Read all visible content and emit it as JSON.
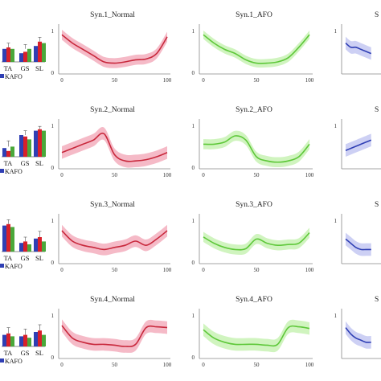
{
  "colors": {
    "normal": "#c8283c",
    "normal_band": "#f3aebd",
    "afo": "#5ec83a",
    "afo_band": "#c8f2b4",
    "kafo": "#2f3fb4",
    "kafo_band": "#c4c8f2",
    "bar_blue": "#2f3fb4",
    "bar_red": "#d8202a",
    "bar_green": "#4aa83a"
  },
  "chart_data": [
    {
      "type": "line",
      "title": "Syn.1_Normal",
      "condition": "Normal",
      "row": 0,
      "col": 0,
      "x": [
        0,
        10,
        20,
        30,
        40,
        50,
        60,
        70,
        80,
        90,
        100
      ],
      "y": [
        0.9,
        0.7,
        0.55,
        0.4,
        0.25,
        0.22,
        0.25,
        0.3,
        0.32,
        0.45,
        0.85
      ],
      "band": 0.12,
      "ylim": [
        0,
        1
      ],
      "yticks": [
        "0",
        "1"
      ],
      "xticks": [
        "0",
        "50",
        "100"
      ]
    },
    {
      "type": "line",
      "title": "Syn.1_AFO",
      "condition": "AFO",
      "row": 0,
      "col": 1,
      "x": [
        0,
        10,
        20,
        30,
        40,
        50,
        60,
        70,
        80,
        90,
        100
      ],
      "y": [
        0.9,
        0.7,
        0.55,
        0.45,
        0.3,
        0.22,
        0.22,
        0.25,
        0.35,
        0.6,
        0.9
      ],
      "band": 0.1,
      "ylim": [
        0,
        1
      ],
      "yticks": [
        "0",
        "1"
      ],
      "xticks": [
        "0",
        "50",
        "100"
      ]
    },
    {
      "type": "line",
      "title": "S",
      "condition": "KAFO",
      "row": 0,
      "col": 2,
      "x": [
        0,
        5,
        10,
        15,
        20,
        25
      ],
      "y": [
        0.7,
        0.6,
        0.6,
        0.55,
        0.5,
        0.45
      ],
      "band": 0.15,
      "ylim": [
        0,
        1
      ],
      "yticks": [
        "1"
      ],
      "xticks": []
    },
    {
      "type": "line",
      "title": "Syn.2_Normal",
      "condition": "Normal",
      "row": 1,
      "col": 0,
      "x": [
        0,
        10,
        20,
        30,
        40,
        50,
        60,
        70,
        80,
        90,
        100
      ],
      "y": [
        0.35,
        0.45,
        0.55,
        0.65,
        0.8,
        0.3,
        0.15,
        0.15,
        0.18,
        0.25,
        0.35
      ],
      "band": 0.15,
      "ylim": [
        0,
        1
      ],
      "yticks": [
        "0",
        "1"
      ],
      "xticks": [
        "0",
        "50",
        "100"
      ]
    },
    {
      "type": "line",
      "title": "Syn.2_AFO",
      "condition": "AFO",
      "row": 1,
      "col": 1,
      "x": [
        0,
        10,
        20,
        30,
        40,
        50,
        60,
        70,
        80,
        90,
        100
      ],
      "y": [
        0.55,
        0.55,
        0.6,
        0.75,
        0.65,
        0.25,
        0.15,
        0.12,
        0.15,
        0.25,
        0.55
      ],
      "band": 0.12,
      "ylim": [
        0,
        1
      ],
      "yticks": [
        "0",
        "1"
      ],
      "xticks": [
        "0",
        "50",
        "100"
      ]
    },
    {
      "type": "line",
      "title": "S",
      "condition": "KAFO",
      "row": 1,
      "col": 2,
      "x": [
        0,
        5,
        10,
        15,
        20,
        25
      ],
      "y": [
        0.4,
        0.45,
        0.5,
        0.55,
        0.6,
        0.65
      ],
      "band": 0.15,
      "ylim": [
        0,
        1
      ],
      "yticks": [
        "1"
      ],
      "xticks": []
    },
    {
      "type": "line",
      "title": "Syn.3_Normal",
      "condition": "Normal",
      "row": 2,
      "col": 0,
      "x": [
        0,
        10,
        20,
        30,
        40,
        50,
        60,
        70,
        80,
        90,
        100
      ],
      "y": [
        0.75,
        0.5,
        0.4,
        0.35,
        0.3,
        0.35,
        0.4,
        0.5,
        0.4,
        0.55,
        0.75
      ],
      "band": 0.14,
      "ylim": [
        0,
        1
      ],
      "yticks": [
        "0",
        "1"
      ],
      "xticks": [
        "0",
        "50",
        "100"
      ]
    },
    {
      "type": "line",
      "title": "Syn.3_AFO",
      "condition": "AFO",
      "row": 2,
      "col": 1,
      "x": [
        0,
        10,
        20,
        30,
        40,
        50,
        60,
        70,
        80,
        90,
        100
      ],
      "y": [
        0.6,
        0.45,
        0.35,
        0.3,
        0.32,
        0.55,
        0.45,
        0.4,
        0.42,
        0.45,
        0.7
      ],
      "band": 0.12,
      "ylim": [
        0,
        1
      ],
      "yticks": [
        "0",
        "1"
      ],
      "xticks": [
        "0",
        "50",
        "100"
      ]
    },
    {
      "type": "line",
      "title": "S",
      "condition": "KAFO",
      "row": 2,
      "col": 2,
      "x": [
        0,
        5,
        10,
        15,
        20,
        25
      ],
      "y": [
        0.55,
        0.45,
        0.35,
        0.3,
        0.3,
        0.3
      ],
      "band": 0.15,
      "ylim": [
        0,
        1
      ],
      "yticks": [
        "1"
      ],
      "xticks": []
    },
    {
      "type": "line",
      "title": "Syn.4_Normal",
      "condition": "Normal",
      "row": 3,
      "col": 0,
      "x": [
        0,
        10,
        20,
        30,
        40,
        50,
        60,
        70,
        80,
        90,
        100
      ],
      "y": [
        0.75,
        0.45,
        0.35,
        0.3,
        0.3,
        0.28,
        0.25,
        0.3,
        0.7,
        0.72,
        0.7
      ],
      "band": 0.15,
      "ylim": [
        0,
        1
      ],
      "yticks": [
        "0",
        "1"
      ],
      "xticks": [
        "0",
        "50",
        "100"
      ]
    },
    {
      "type": "line",
      "title": "Syn.4_AFO",
      "condition": "AFO",
      "row": 3,
      "col": 1,
      "x": [
        0,
        10,
        20,
        30,
        40,
        50,
        60,
        70,
        80,
        90,
        100
      ],
      "y": [
        0.65,
        0.45,
        0.35,
        0.3,
        0.3,
        0.3,
        0.28,
        0.3,
        0.7,
        0.72,
        0.68
      ],
      "band": 0.15,
      "ylim": [
        0,
        1
      ],
      "yticks": [
        "0",
        "1"
      ],
      "xticks": [
        "0",
        "50",
        "100"
      ]
    },
    {
      "type": "line",
      "title": "S",
      "condition": "KAFO",
      "row": 3,
      "col": 2,
      "x": [
        0,
        5,
        10,
        15,
        20,
        25
      ],
      "y": [
        0.7,
        0.55,
        0.45,
        0.4,
        0.35,
        0.35
      ],
      "band": 0.15,
      "ylim": [
        0,
        1
      ],
      "yticks": [
        "1"
      ],
      "xticks": []
    },
    {
      "type": "bar",
      "row": 0,
      "categories": [
        "TA",
        "GS",
        "SL"
      ],
      "series": [
        {
          "values": [
            0.45,
            0.3,
            0.55
          ]
        },
        {
          "values": [
            0.5,
            0.35,
            0.7
          ]
        },
        {
          "values": [
            0.45,
            0.45,
            0.65
          ]
        }
      ],
      "errors": [
        0.15,
        0.15,
        0.15
      ],
      "legend": "KAFO",
      "ylim": [
        0,
        1
      ]
    },
    {
      "type": "bar",
      "row": 1,
      "categories": [
        "TA",
        "GS",
        "SL"
      ],
      "series": [
        {
          "values": [
            0.3,
            0.75,
            0.9
          ]
        },
        {
          "values": [
            0.2,
            0.7,
            0.95
          ]
        },
        {
          "values": [
            0.35,
            0.6,
            0.9
          ]
        }
      ],
      "errors": [
        0.2,
        0.15,
        0.1
      ],
      "legend": "KAFO",
      "ylim": [
        0,
        1
      ]
    },
    {
      "type": "bar",
      "row": 2,
      "categories": [
        "TA",
        "GS",
        "SL"
      ],
      "series": [
        {
          "values": [
            0.9,
            0.3,
            0.45
          ]
        },
        {
          "values": [
            0.95,
            0.35,
            0.5
          ]
        },
        {
          "values": [
            0.85,
            0.25,
            0.35
          ]
        }
      ],
      "errors": [
        0.15,
        0.15,
        0.2
      ],
      "legend": "KAFO",
      "ylim": [
        0,
        1
      ]
    },
    {
      "type": "bar",
      "row": 3,
      "categories": [
        "TA",
        "GS",
        "SL"
      ],
      "series": [
        {
          "values": [
            0.4,
            0.35,
            0.5
          ]
        },
        {
          "values": [
            0.45,
            0.4,
            0.55
          ]
        },
        {
          "values": [
            0.35,
            0.3,
            0.4
          ]
        }
      ],
      "errors": [
        0.2,
        0.2,
        0.2
      ],
      "legend": "KAFO",
      "ylim": [
        0,
        1
      ]
    }
  ]
}
